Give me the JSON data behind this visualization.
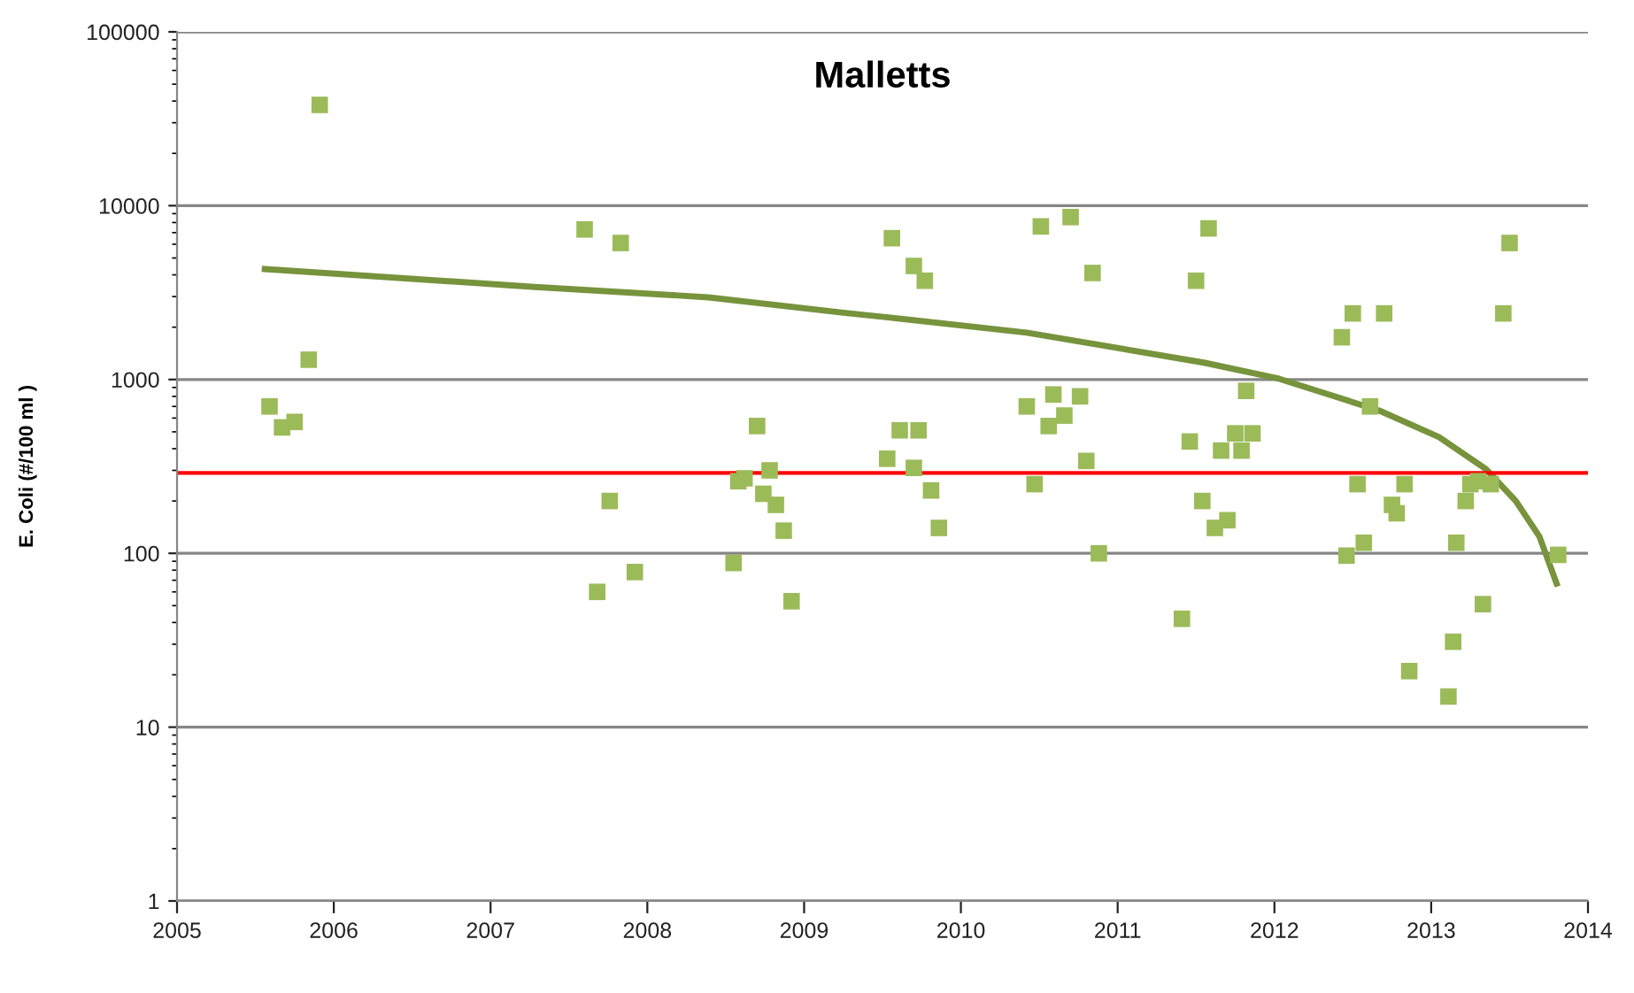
{
  "chart_data": {
    "type": "scatter",
    "title": "Malletts",
    "ylabel": "E. Coli (#/100 ml )",
    "log": "y",
    "xlim": [
      2005,
      2014
    ],
    "xticks": [
      2005,
      2006,
      2007,
      2008,
      2009,
      2010,
      2011,
      2012,
      2013,
      2014
    ],
    "ylim": [
      1,
      100000
    ],
    "yticks": [
      1,
      10,
      100,
      1000,
      10000,
      100000
    ],
    "grid": "y",
    "series": [
      {
        "marker": "square",
        "color": "#9bbb59",
        "x": [
          2005.59,
          2005.67,
          2005.75,
          2005.84,
          2005.91,
          2007.6,
          2007.68,
          2007.76,
          2007.83,
          2007.92,
          2008.55,
          2008.58,
          2008.62,
          2008.7,
          2008.74,
          2008.78,
          2008.82,
          2008.87,
          2008.92,
          2009.53,
          2009.56,
          2009.61,
          2009.7,
          2009.7,
          2009.73,
          2009.77,
          2009.81,
          2009.86,
          2010.42,
          2010.47,
          2010.51,
          2010.56,
          2010.59,
          2010.66,
          2010.7,
          2010.76,
          2010.8,
          2010.84,
          2010.88,
          2011.41,
          2011.46,
          2011.5,
          2011.54,
          2011.58,
          2011.62,
          2011.66,
          2011.7,
          2011.75,
          2011.79,
          2011.82,
          2011.86,
          2012.43,
          2012.46,
          2012.5,
          2012.53,
          2012.57,
          2012.61,
          2012.7,
          2012.75,
          2012.78,
          2012.83,
          2012.86,
          2013.11,
          2013.14,
          2013.16,
          2013.22,
          2013.25,
          2013.3,
          2013.33,
          2013.38,
          2013.46,
          2013.5,
          2013.81
        ],
        "values": [
          700,
          530,
          570,
          1300,
          38000,
          7300,
          60,
          200,
          6100,
          78,
          88,
          260,
          270,
          540,
          220,
          300,
          190,
          135,
          53,
          350,
          6500,
          510,
          4500,
          310,
          510,
          3700,
          230,
          140,
          700,
          250,
          7600,
          540,
          820,
          620,
          8600,
          800,
          340,
          4100,
          100,
          42,
          440,
          3700,
          200,
          7400,
          140,
          390,
          155,
          490,
          390,
          860,
          490,
          1750,
          97,
          2400,
          250,
          115,
          700,
          2400,
          190,
          170,
          250,
          21,
          15,
          31,
          115,
          200,
          250,
          260,
          51,
          250,
          2400,
          6100,
          98
        ]
      },
      {
        "type": "line",
        "marker": "none",
        "color": "#77933c",
        "x": [
          2005.56,
          2007.26,
          2008.39,
          2009.29,
          2009.51,
          2010.42,
          2011.55,
          2012.03,
          2012.67,
          2013.05,
          2013.35,
          2013.54,
          2013.69,
          2013.8
        ],
        "values": [
          4320,
          3420,
          2970,
          2400,
          2290,
          1860,
          1250,
          1010,
          662,
          466,
          305,
          200,
          125,
          67
        ]
      }
    ],
    "ref_lines": [
      {
        "axis": "y",
        "value": 290,
        "color": "#ff0000"
      }
    ]
  }
}
